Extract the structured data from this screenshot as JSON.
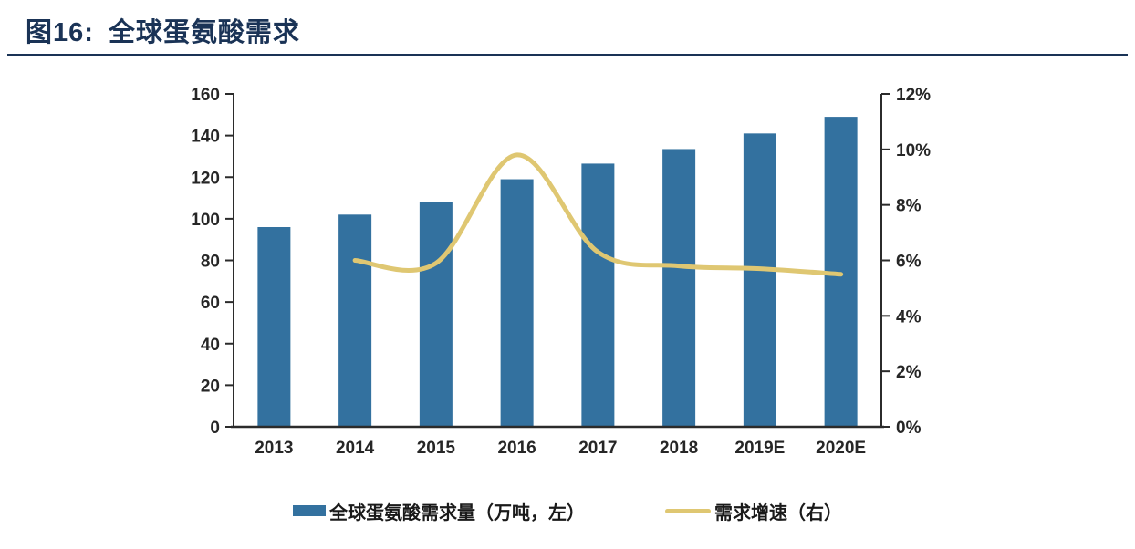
{
  "figure": {
    "title_prefix": "图16:",
    "title_text": "全球蛋氨酸需求"
  },
  "colors": {
    "bar": "#33719F",
    "line": "#DFC772",
    "title": "#1A3356",
    "axis_text": "#262626",
    "axis_line": "#2B2B2B"
  },
  "chart_data": {
    "type": "bar",
    "subtype": "bar+line combo, dual axis",
    "categories": [
      "2013",
      "2014",
      "2015",
      "2016",
      "2017",
      "2018",
      "2019E",
      "2020E"
    ],
    "series": [
      {
        "name": "全球蛋氨酸需求量（万吨，左）",
        "type": "bar",
        "axis": "left",
        "values": [
          96,
          102,
          108,
          119,
          126.5,
          133.5,
          141,
          149
        ]
      },
      {
        "name": "需求增速（右）",
        "type": "line",
        "axis": "right",
        "values": [
          null,
          6.0,
          5.9,
          9.8,
          6.3,
          5.8,
          5.7,
          5.5
        ]
      }
    ],
    "left_axis": {
      "min": 0,
      "max": 160,
      "step": 20,
      "tick_labels": [
        "0",
        "20",
        "40",
        "60",
        "80",
        "100",
        "120",
        "140",
        "160"
      ]
    },
    "right_axis": {
      "min": 0,
      "max": 12,
      "step": 2,
      "tick_labels": [
        "0%",
        "2%",
        "4%",
        "6%",
        "8%",
        "10%",
        "12%"
      ]
    },
    "grid": false,
    "legend_position": "bottom",
    "legend": [
      {
        "label": "全球蛋氨酸需求量（万吨，左）",
        "swatch": "bar"
      },
      {
        "label": "需求增速（右）",
        "swatch": "line"
      }
    ]
  }
}
